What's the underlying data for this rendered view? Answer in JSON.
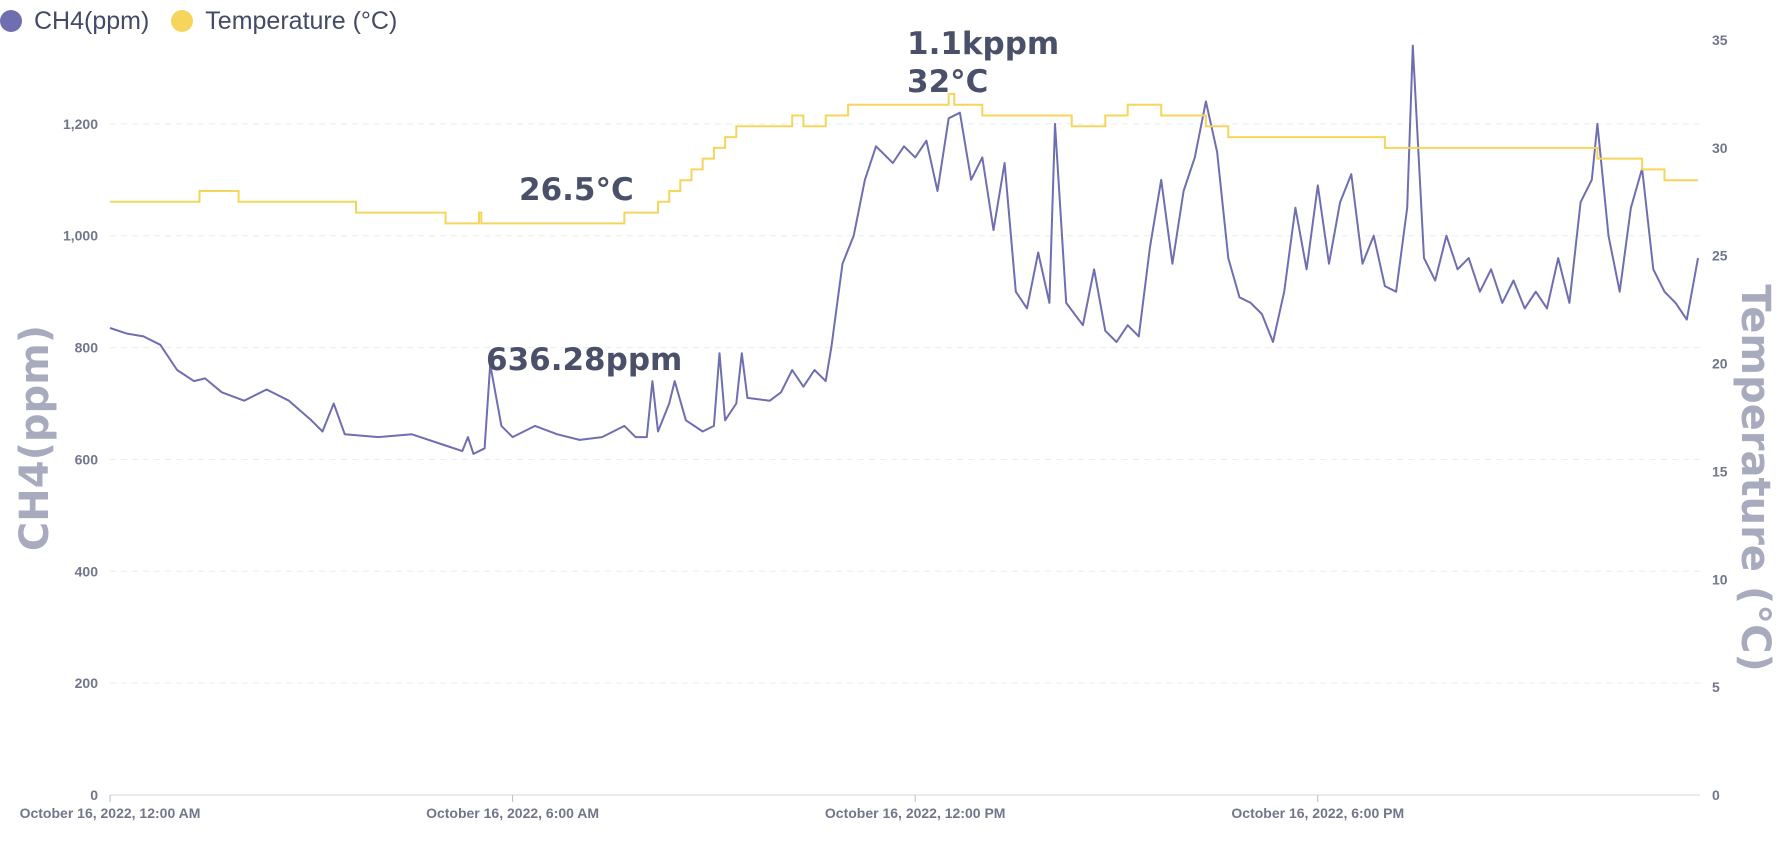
{
  "legend": {
    "ch4_label": "CH4(ppm)",
    "temp_label": "Temperature (°C)"
  },
  "colors": {
    "ch4": "#6f6eb1",
    "temperature": "#f6d55c"
  },
  "chart_data": {
    "type": "line",
    "x_type": "datetime",
    "x_ticks": [
      "October 16, 2022, 12:00 AM",
      "October 16, 2022, 6:00 AM",
      "October 16, 2022, 12:00 PM",
      "October 16, 2022, 6:00 PM"
    ],
    "xlim": [
      "2022-10-16 00:00",
      "2022-10-16 23:40"
    ],
    "y_left": {
      "label": "CH4(ppm)",
      "range": [
        0,
        1350
      ],
      "ticks": [
        "0",
        "200",
        "400",
        "600",
        "800",
        "1,000",
        "1,200"
      ]
    },
    "y_right": {
      "label": "Temperature (°C)",
      "range": [
        0,
        35
      ],
      "ticks": [
        "0",
        "5",
        "10",
        "15",
        "20",
        "25",
        "30",
        "35"
      ]
    },
    "grid": true,
    "legend_position": "top-left",
    "annotations": [
      "1.1kppm",
      "32°C",
      "26.5°C",
      "636.28ppm"
    ],
    "series": [
      {
        "name": "CH4(ppm)",
        "axis": "left",
        "points": [
          [
            "2022-10-16 00:00",
            835
          ],
          [
            "2022-10-16 00:15",
            825
          ],
          [
            "2022-10-16 00:30",
            820
          ],
          [
            "2022-10-16 00:45",
            805
          ],
          [
            "2022-10-16 01:00",
            760
          ],
          [
            "2022-10-16 01:15",
            740
          ],
          [
            "2022-10-16 01:25",
            745
          ],
          [
            "2022-10-16 01:40",
            720
          ],
          [
            "2022-10-16 02:00",
            705
          ],
          [
            "2022-10-16 02:20",
            725
          ],
          [
            "2022-10-16 02:40",
            705
          ],
          [
            "2022-10-16 03:00",
            670
          ],
          [
            "2022-10-16 03:10",
            650
          ],
          [
            "2022-10-16 03:20",
            700
          ],
          [
            "2022-10-16 03:30",
            645
          ],
          [
            "2022-10-16 04:00",
            640
          ],
          [
            "2022-10-16 04:30",
            645
          ],
          [
            "2022-10-16 05:00",
            625
          ],
          [
            "2022-10-16 05:15",
            615
          ],
          [
            "2022-10-16 05:20",
            640
          ],
          [
            "2022-10-16 05:25",
            610
          ],
          [
            "2022-10-16 05:35",
            620
          ],
          [
            "2022-10-16 05:40",
            770
          ],
          [
            "2022-10-16 05:50",
            660
          ],
          [
            "2022-10-16 06:00",
            640
          ],
          [
            "2022-10-16 06:20",
            660
          ],
          [
            "2022-10-16 06:40",
            645
          ],
          [
            "2022-10-16 07:00",
            635
          ],
          [
            "2022-10-16 07:20",
            640
          ],
          [
            "2022-10-16 07:40",
            660
          ],
          [
            "2022-10-16 07:50",
            640
          ],
          [
            "2022-10-16 08:00",
            640
          ],
          [
            "2022-10-16 08:05",
            740
          ],
          [
            "2022-10-16 08:10",
            650
          ],
          [
            "2022-10-16 08:20",
            700
          ],
          [
            "2022-10-16 08:25",
            740
          ],
          [
            "2022-10-16 08:35",
            670
          ],
          [
            "2022-10-16 08:50",
            650
          ],
          [
            "2022-10-16 09:00",
            660
          ],
          [
            "2022-10-16 09:05",
            790
          ],
          [
            "2022-10-16 09:10",
            670
          ],
          [
            "2022-10-16 09:20",
            700
          ],
          [
            "2022-10-16 09:25",
            790
          ],
          [
            "2022-10-16 09:30",
            710
          ],
          [
            "2022-10-16 09:50",
            705
          ],
          [
            "2022-10-16 10:00",
            720
          ],
          [
            "2022-10-16 10:10",
            760
          ],
          [
            "2022-10-16 10:20",
            730
          ],
          [
            "2022-10-16 10:30",
            760
          ],
          [
            "2022-10-16 10:40",
            740
          ],
          [
            "2022-10-16 10:45",
            800
          ],
          [
            "2022-10-16 10:55",
            950
          ],
          [
            "2022-10-16 11:05",
            1000
          ],
          [
            "2022-10-16 11:15",
            1100
          ],
          [
            "2022-10-16 11:25",
            1160
          ],
          [
            "2022-10-16 11:40",
            1130
          ],
          [
            "2022-10-16 11:50",
            1160
          ],
          [
            "2022-10-16 12:00",
            1140
          ],
          [
            "2022-10-16 12:10",
            1170
          ],
          [
            "2022-10-16 12:20",
            1080
          ],
          [
            "2022-10-16 12:30",
            1210
          ],
          [
            "2022-10-16 12:40",
            1220
          ],
          [
            "2022-10-16 12:50",
            1100
          ],
          [
            "2022-10-16 13:00",
            1140
          ],
          [
            "2022-10-16 13:10",
            1010
          ],
          [
            "2022-10-16 13:20",
            1130
          ],
          [
            "2022-10-16 13:30",
            900
          ],
          [
            "2022-10-16 13:40",
            870
          ],
          [
            "2022-10-16 13:50",
            970
          ],
          [
            "2022-10-16 14:00",
            880
          ],
          [
            "2022-10-16 14:05",
            1200
          ],
          [
            "2022-10-16 14:15",
            880
          ],
          [
            "2022-10-16 14:30",
            840
          ],
          [
            "2022-10-16 14:40",
            940
          ],
          [
            "2022-10-16 14:50",
            830
          ],
          [
            "2022-10-16 15:00",
            810
          ],
          [
            "2022-10-16 15:10",
            840
          ],
          [
            "2022-10-16 15:20",
            820
          ],
          [
            "2022-10-16 15:30",
            980
          ],
          [
            "2022-10-16 15:40",
            1100
          ],
          [
            "2022-10-16 15:50",
            950
          ],
          [
            "2022-10-16 16:00",
            1080
          ],
          [
            "2022-10-16 16:10",
            1140
          ],
          [
            "2022-10-16 16:20",
            1240
          ],
          [
            "2022-10-16 16:30",
            1150
          ],
          [
            "2022-10-16 16:40",
            960
          ],
          [
            "2022-10-16 16:50",
            890
          ],
          [
            "2022-10-16 17:00",
            880
          ],
          [
            "2022-10-16 17:10",
            860
          ],
          [
            "2022-10-16 17:20",
            810
          ],
          [
            "2022-10-16 17:30",
            900
          ],
          [
            "2022-10-16 17:40",
            1050
          ],
          [
            "2022-10-16 17:50",
            940
          ],
          [
            "2022-10-16 18:00",
            1090
          ],
          [
            "2022-10-16 18:10",
            950
          ],
          [
            "2022-10-16 18:20",
            1060
          ],
          [
            "2022-10-16 18:30",
            1110
          ],
          [
            "2022-10-16 18:40",
            950
          ],
          [
            "2022-10-16 18:50",
            1000
          ],
          [
            "2022-10-16 19:00",
            910
          ],
          [
            "2022-10-16 19:10",
            900
          ],
          [
            "2022-10-16 19:20",
            1050
          ],
          [
            "2022-10-16 19:25",
            1340
          ],
          [
            "2022-10-16 19:35",
            960
          ],
          [
            "2022-10-16 19:45",
            920
          ],
          [
            "2022-10-16 19:55",
            1000
          ],
          [
            "2022-10-16 20:05",
            940
          ],
          [
            "2022-10-16 20:15",
            960
          ],
          [
            "2022-10-16 20:25",
            900
          ],
          [
            "2022-10-16 20:35",
            940
          ],
          [
            "2022-10-16 20:45",
            880
          ],
          [
            "2022-10-16 20:55",
            920
          ],
          [
            "2022-10-16 21:05",
            870
          ],
          [
            "2022-10-16 21:15",
            900
          ],
          [
            "2022-10-16 21:25",
            870
          ],
          [
            "2022-10-16 21:35",
            960
          ],
          [
            "2022-10-16 21:45",
            880
          ],
          [
            "2022-10-16 21:55",
            1060
          ],
          [
            "2022-10-16 22:05",
            1100
          ],
          [
            "2022-10-16 22:10",
            1200
          ],
          [
            "2022-10-16 22:20",
            1000
          ],
          [
            "2022-10-16 22:30",
            900
          ],
          [
            "2022-10-16 22:40",
            1050
          ],
          [
            "2022-10-16 22:50",
            1120
          ],
          [
            "2022-10-16 23:00",
            940
          ],
          [
            "2022-10-16 23:10",
            900
          ],
          [
            "2022-10-16 23:20",
            880
          ],
          [
            "2022-10-16 23:30",
            850
          ],
          [
            "2022-10-16 23:40",
            960
          ]
        ]
      },
      {
        "name": "Temperature (°C)",
        "axis": "right",
        "step": true,
        "points": [
          [
            "2022-10-16 00:00",
            27.5
          ],
          [
            "2022-10-16 01:20",
            28.0
          ],
          [
            "2022-10-16 01:55",
            27.5
          ],
          [
            "2022-10-16 03:40",
            27.0
          ],
          [
            "2022-10-16 05:00",
            26.5
          ],
          [
            "2022-10-16 05:30",
            27.0
          ],
          [
            "2022-10-16 05:32",
            26.5
          ],
          [
            "2022-10-16 07:40",
            27.0
          ],
          [
            "2022-10-16 08:10",
            27.5
          ],
          [
            "2022-10-16 08:20",
            28.0
          ],
          [
            "2022-10-16 08:30",
            28.5
          ],
          [
            "2022-10-16 08:40",
            29.0
          ],
          [
            "2022-10-16 08:50",
            29.5
          ],
          [
            "2022-10-16 09:00",
            30.0
          ],
          [
            "2022-10-16 09:10",
            30.5
          ],
          [
            "2022-10-16 09:20",
            31.0
          ],
          [
            "2022-10-16 10:10",
            31.5
          ],
          [
            "2022-10-16 10:20",
            31.0
          ],
          [
            "2022-10-16 10:40",
            31.5
          ],
          [
            "2022-10-16 11:00",
            32.0
          ],
          [
            "2022-10-16 12:30",
            32.5
          ],
          [
            "2022-10-16 12:35",
            32.0
          ],
          [
            "2022-10-16 13:00",
            31.5
          ],
          [
            "2022-10-16 13:20",
            31.5
          ],
          [
            "2022-10-16 14:20",
            31.0
          ],
          [
            "2022-10-16 14:50",
            31.5
          ],
          [
            "2022-10-16 15:10",
            32.0
          ],
          [
            "2022-10-16 15:40",
            31.5
          ],
          [
            "2022-10-16 16:20",
            31.0
          ],
          [
            "2022-10-16 16:40",
            30.5
          ],
          [
            "2022-10-16 19:00",
            30.0
          ],
          [
            "2022-10-16 22:10",
            29.5
          ],
          [
            "2022-10-16 22:50",
            29.0
          ],
          [
            "2022-10-16 23:10",
            28.5
          ],
          [
            "2022-10-16 23:40",
            28.5
          ]
        ]
      }
    ]
  }
}
